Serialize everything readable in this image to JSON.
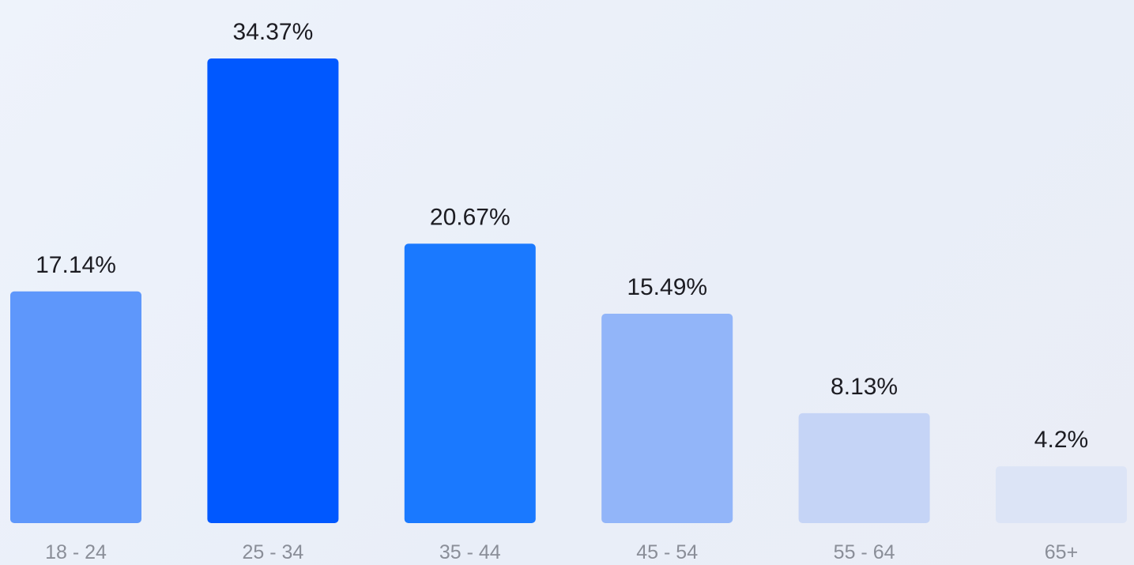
{
  "chart_data": {
    "type": "bar",
    "categories": [
      "18 - 24",
      "25 - 34",
      "35 - 44",
      "45 - 54",
      "55 - 64",
      "65+"
    ],
    "values": [
      17.14,
      34.37,
      20.67,
      15.49,
      8.13,
      4.2
    ],
    "value_labels": [
      "17.14%",
      "34.37%",
      "20.67%",
      "15.49%",
      "8.13%",
      "4.2%"
    ],
    "bar_colors": [
      "#5e97fb",
      "#0058ff",
      "#1a79ff",
      "#92b5f9",
      "#c5d4f6",
      "#dce4f6"
    ],
    "title": "",
    "xlabel": "",
    "ylabel": "",
    "ylim": [
      0,
      34.37
    ],
    "grid": false,
    "legend": "none"
  }
}
